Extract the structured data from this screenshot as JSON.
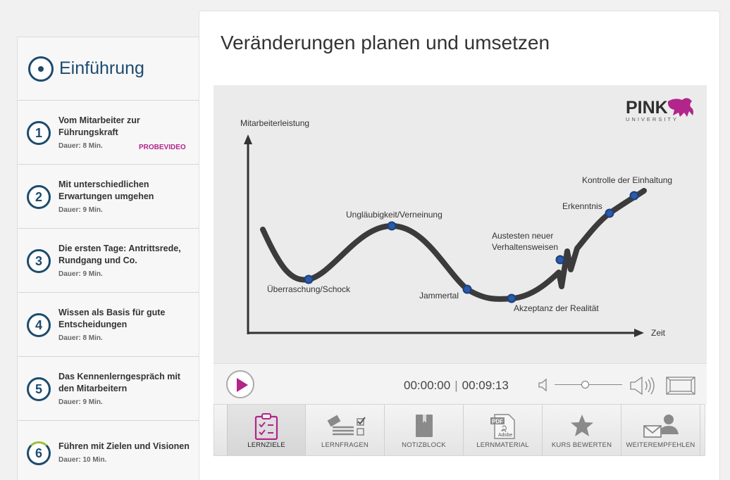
{
  "sidebar": {
    "title": "Einführung",
    "lessons": [
      {
        "num": "1",
        "title": "Vom Mitarbeiter zur Führungskraft",
        "duration": "Dauer: 8 Min.",
        "badge": "PROBEVIDEO"
      },
      {
        "num": "2",
        "title": "Mit unterschiedlichen Erwartungen umgehen",
        "duration": "Dauer: 9 Min."
      },
      {
        "num": "3",
        "title": "Die ersten Tage: Antrittsrede, Rundgang und Co.",
        "duration": "Dauer: 9 Min."
      },
      {
        "num": "4",
        "title": "Wissen als Basis für gute Entscheidungen",
        "duration": "Dauer: 8 Min."
      },
      {
        "num": "5",
        "title": "Das Kennenlerngespräch mit den Mitarbeitern",
        "duration": "Dauer: 9 Min."
      },
      {
        "num": "6",
        "title": "Führen mit Zielen und Visionen",
        "duration": "Dauer: 10 Min."
      }
    ]
  },
  "main": {
    "title": "Veränderungen planen und umsetzen"
  },
  "video": {
    "logo_main": "PINK",
    "logo_sub": "UNIVERSITY",
    "y_axis_label": "Mitarbeiterleistung",
    "x_axis_label": "Zeit",
    "points": {
      "p1": "Überraschung/Schock",
      "p2": "Ungläubigkeit/Verneinung",
      "p3": "Jammertal",
      "p4": "Akzeptanz der Realität",
      "p5a": "Austesten neuer",
      "p5b": "Verhaltensweisen",
      "p6": "Erkenntnis",
      "p7": "Kontrolle der Einhaltung"
    }
  },
  "player": {
    "current_time": "00:00:00",
    "separator": "|",
    "total_time": "00:09:13",
    "volume_level": 0.45
  },
  "toolbar": {
    "items": [
      {
        "label": "LERNZIELE"
      },
      {
        "label": "LERNFRAGEN"
      },
      {
        "label": "NOTIZBLOCK"
      },
      {
        "label": "LERNMATERIAL"
      },
      {
        "label": "KURS BEWERTEN"
      },
      {
        "label": "WEITEREMPFEHLEN"
      }
    ],
    "pdf_icon_text": "PDF",
    "adobe_icon_text": "Adobe"
  },
  "colors": {
    "accent": "#b2258a",
    "navy": "#1d4b6e",
    "point_blue": "#2a5aa8"
  }
}
